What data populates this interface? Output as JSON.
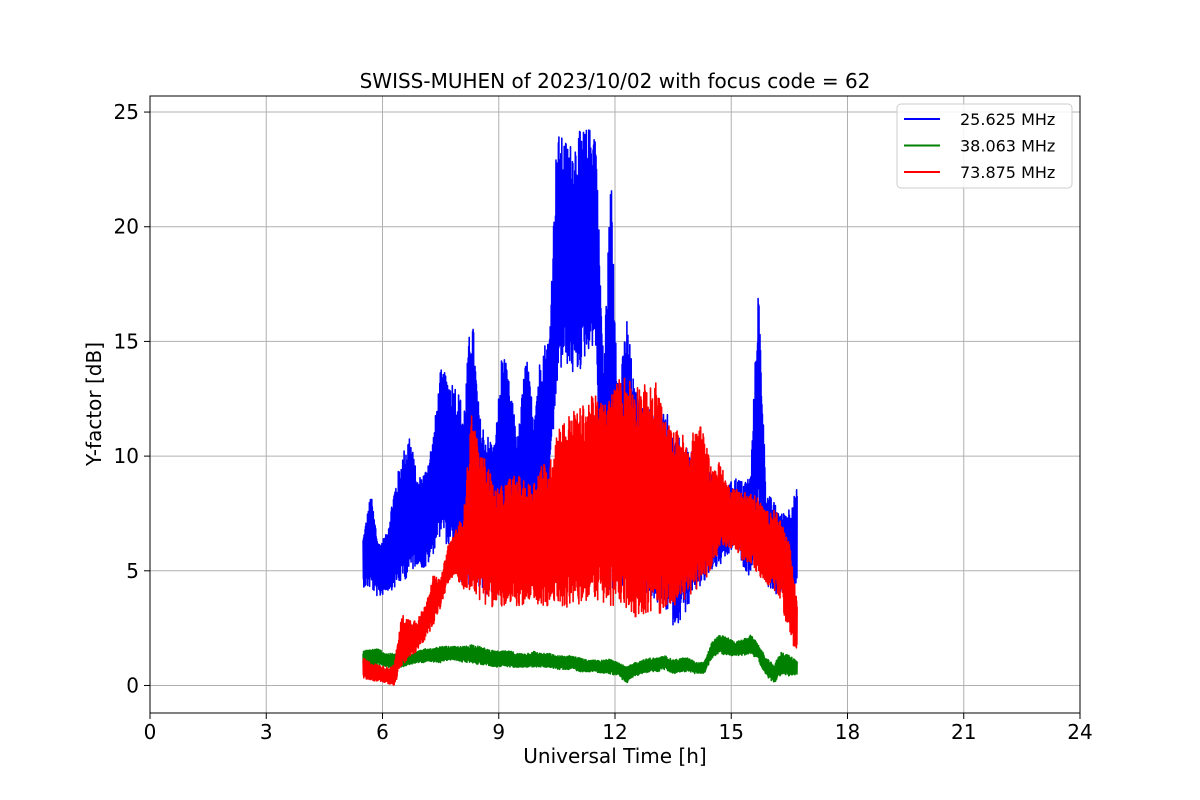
{
  "chart_data": {
    "type": "line",
    "title": "SWISS-MUHEN of 2023/10/02 with focus code = 62",
    "xlabel": "Universal Time [h]",
    "ylabel": "Y-factor [dB]",
    "xlim": [
      0,
      24
    ],
    "ylim": [
      -1.2,
      25.7
    ],
    "xticks": [
      0,
      3,
      6,
      9,
      12,
      15,
      18,
      21,
      24
    ],
    "yticks": [
      0,
      5,
      10,
      15,
      20,
      25
    ],
    "grid": true,
    "legend_position": "top-right",
    "series": [
      {
        "name": "25.625 MHz",
        "color": "#0000ff",
        "x": [
          5.5,
          5.7,
          5.9,
          6.1,
          6.3,
          6.5,
          6.7,
          6.9,
          7.1,
          7.3,
          7.5,
          7.7,
          7.9,
          8.1,
          8.3,
          8.5,
          8.7,
          8.9,
          9.1,
          9.3,
          9.5,
          9.7,
          9.9,
          10.1,
          10.3,
          10.5,
          10.7,
          10.9,
          11.1,
          11.3,
          11.5,
          11.7,
          11.9,
          12.1,
          12.3,
          12.5,
          12.7,
          12.9,
          13.1,
          13.3,
          13.5,
          13.7,
          13.9,
          14.1,
          14.3,
          14.5,
          14.7,
          14.9,
          15.1,
          15.3,
          15.5,
          15.7,
          15.9,
          16.1,
          16.3,
          16.5,
          16.7
        ],
        "upper": [
          6.5,
          8.4,
          6.2,
          6.6,
          8.6,
          10.0,
          11.1,
          9.0,
          9.4,
          10.8,
          13.8,
          13.5,
          13.2,
          12.1,
          16.7,
          11.8,
          11.0,
          10.6,
          14.9,
          12.9,
          10.9,
          14.6,
          12.0,
          14.8,
          15.2,
          24.1,
          23.8,
          23.6,
          24.2,
          24.3,
          24.4,
          14.2,
          22.4,
          12.6,
          16.3,
          13.0,
          12.2,
          12.4,
          11.1,
          12.3,
          10.9,
          10.8,
          10.2,
          10.1,
          9.5,
          9.2,
          9.0,
          8.7,
          9.1,
          8.9,
          9.2,
          17.6,
          8.5,
          8.0,
          7.5,
          7.8,
          8.6
        ],
        "lower": [
          4.3,
          4.2,
          3.8,
          4.1,
          4.2,
          4.5,
          4.8,
          5.3,
          5.0,
          5.7,
          6.6,
          6.0,
          5.0,
          4.2,
          4.4,
          4.0,
          3.8,
          3.9,
          4.2,
          4.4,
          4.3,
          5.2,
          6.1,
          7.0,
          7.8,
          13.0,
          14.2,
          13.5,
          13.7,
          14.6,
          14.9,
          4.1,
          3.5,
          4.6,
          3.9,
          4.3,
          3.8,
          4.0,
          3.5,
          3.3,
          2.6,
          2.8,
          3.4,
          4.1,
          4.4,
          5.0,
          5.2,
          5.6,
          6.1,
          5.2,
          4.7,
          7.6,
          4.4,
          3.9,
          4.1,
          4.0,
          4.5
        ]
      },
      {
        "name": "38.063 MHz",
        "color": "#008000",
        "x": [
          5.5,
          5.7,
          5.9,
          6.1,
          6.3,
          6.5,
          6.7,
          6.9,
          7.1,
          7.3,
          7.5,
          7.7,
          7.9,
          8.1,
          8.3,
          8.5,
          8.7,
          8.9,
          9.1,
          9.3,
          9.5,
          9.7,
          9.9,
          10.1,
          10.3,
          10.5,
          10.7,
          10.9,
          11.1,
          11.3,
          11.5,
          11.7,
          11.9,
          12.1,
          12.3,
          12.5,
          12.7,
          12.9,
          13.1,
          13.3,
          13.5,
          13.7,
          13.9,
          14.1,
          14.3,
          14.5,
          14.7,
          14.9,
          15.1,
          15.3,
          15.5,
          15.7,
          15.9,
          16.1,
          16.3,
          16.5,
          16.7
        ],
        "upper": [
          1.5,
          1.6,
          1.6,
          1.4,
          1.4,
          1.3,
          1.4,
          1.5,
          1.6,
          1.6,
          1.7,
          1.7,
          1.7,
          1.7,
          1.8,
          1.7,
          1.6,
          1.5,
          1.5,
          1.5,
          1.4,
          1.4,
          1.5,
          1.4,
          1.4,
          1.3,
          1.3,
          1.3,
          1.2,
          1.1,
          1.1,
          1.1,
          1.2,
          1.0,
          0.8,
          1.0,
          1.1,
          1.2,
          1.2,
          1.3,
          1.1,
          1.2,
          1.2,
          1.0,
          1.0,
          1.9,
          2.2,
          2.1,
          1.9,
          2.0,
          2.2,
          1.8,
          1.2,
          0.9,
          1.5,
          1.3,
          1.1
        ],
        "lower": [
          0.8,
          0.8,
          0.9,
          0.8,
          0.8,
          0.8,
          0.9,
          1.0,
          1.0,
          1.0,
          1.0,
          1.1,
          1.1,
          1.0,
          1.0,
          0.9,
          0.9,
          0.8,
          0.8,
          0.8,
          0.8,
          0.8,
          0.8,
          0.8,
          0.8,
          0.7,
          0.7,
          0.7,
          0.6,
          0.6,
          0.6,
          0.5,
          0.5,
          0.4,
          0.1,
          0.4,
          0.5,
          0.6,
          0.6,
          0.7,
          0.5,
          0.6,
          0.6,
          0.5,
          0.5,
          1.2,
          1.4,
          1.3,
          1.3,
          1.3,
          1.4,
          1.1,
          0.4,
          0.1,
          0.5,
          0.4,
          0.5
        ]
      },
      {
        "name": "73.875 MHz",
        "color": "#ff0000",
        "x": [
          5.5,
          5.7,
          5.9,
          6.1,
          6.3,
          6.5,
          6.7,
          6.9,
          7.1,
          7.3,
          7.5,
          7.7,
          7.9,
          8.1,
          8.3,
          8.5,
          8.7,
          8.9,
          9.1,
          9.3,
          9.5,
          9.7,
          9.9,
          10.1,
          10.3,
          10.5,
          10.7,
          10.9,
          11.1,
          11.3,
          11.5,
          11.7,
          11.9,
          12.1,
          12.3,
          12.5,
          12.7,
          12.9,
          13.1,
          13.3,
          13.5,
          13.7,
          13.9,
          14.1,
          14.3,
          14.5,
          14.7,
          14.9,
          15.1,
          15.3,
          15.5,
          15.7,
          15.9,
          16.1,
          16.3,
          16.5,
          16.7
        ],
        "upper": [
          1.2,
          1.0,
          0.9,
          0.8,
          0.9,
          3.1,
          2.9,
          2.9,
          3.5,
          4.8,
          4.6,
          6.2,
          6.8,
          7.6,
          12.0,
          10.2,
          9.8,
          8.6,
          8.7,
          9.1,
          9.2,
          8.8,
          8.9,
          9.8,
          9.5,
          11.4,
          11.6,
          12.0,
          12.1,
          12.5,
          12.7,
          12.3,
          12.8,
          13.4,
          13.6,
          13.3,
          13.2,
          13.0,
          13.3,
          11.6,
          11.1,
          11.2,
          10.3,
          11.6,
          11.1,
          9.4,
          9.8,
          8.8,
          8.6,
          8.5,
          8.4,
          8.2,
          7.6,
          7.7,
          7.2,
          6.2,
          3.6
        ],
        "lower": [
          0.3,
          0.2,
          0.2,
          0.1,
          0.0,
          0.8,
          1.2,
          1.5,
          2.0,
          2.6,
          3.4,
          4.5,
          4.8,
          4.0,
          4.2,
          3.7,
          3.5,
          3.4,
          3.4,
          3.3,
          3.5,
          3.3,
          3.6,
          3.4,
          3.3,
          3.6,
          3.4,
          3.3,
          3.5,
          3.6,
          3.8,
          3.5,
          3.2,
          3.6,
          3.2,
          3.0,
          3.0,
          3.2,
          2.9,
          3.4,
          3.5,
          3.6,
          3.8,
          4.2,
          4.5,
          5.2,
          5.8,
          6.0,
          6.0,
          5.4,
          5.3,
          4.8,
          4.4,
          4.2,
          3.6,
          2.1,
          1.4
        ]
      }
    ]
  }
}
